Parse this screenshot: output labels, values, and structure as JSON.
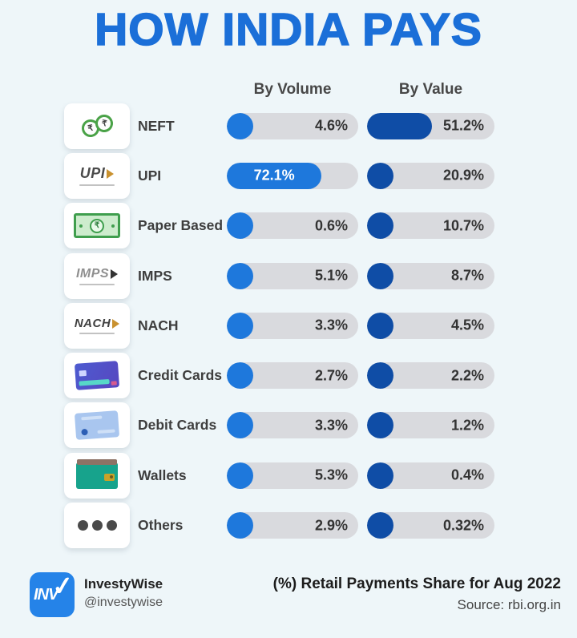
{
  "title": "HOW INDIA PAYS",
  "columns": {
    "volume": "By Volume",
    "value": "By Value"
  },
  "rows": [
    {
      "label": "NEFT",
      "icon": "neft-exchange-icon",
      "vol": {
        "pct": 4.6,
        "display": "4.6%"
      },
      "val": {
        "pct": 51.2,
        "display": "51.2%"
      }
    },
    {
      "label": "UPI",
      "icon": "upi-logo-icon",
      "vol": {
        "pct": 72.1,
        "display": "72.1%",
        "inside": true
      },
      "val": {
        "pct": 20.9,
        "display": "20.9%"
      }
    },
    {
      "label": "Paper Based",
      "icon": "banknote-icon",
      "vol": {
        "pct": 0.6,
        "display": "0.6%"
      },
      "val": {
        "pct": 10.7,
        "display": "10.7%"
      }
    },
    {
      "label": "IMPS",
      "icon": "imps-logo-icon",
      "vol": {
        "pct": 5.1,
        "display": "5.1%"
      },
      "val": {
        "pct": 8.7,
        "display": "8.7%"
      }
    },
    {
      "label": "NACH",
      "icon": "nach-logo-icon",
      "vol": {
        "pct": 3.3,
        "display": "3.3%"
      },
      "val": {
        "pct": 4.5,
        "display": "4.5%"
      }
    },
    {
      "label": "Credit Cards",
      "icon": "credit-card-icon",
      "vol": {
        "pct": 2.7,
        "display": "2.7%"
      },
      "val": {
        "pct": 2.2,
        "display": "2.2%"
      }
    },
    {
      "label": "Debit Cards",
      "icon": "debit-card-icon",
      "vol": {
        "pct": 3.3,
        "display": "3.3%"
      },
      "val": {
        "pct": 1.2,
        "display": "1.2%"
      }
    },
    {
      "label": "Wallets",
      "icon": "wallet-icon",
      "vol": {
        "pct": 5.3,
        "display": "5.3%"
      },
      "val": {
        "pct": 0.4,
        "display": "0.4%"
      }
    },
    {
      "label": "Others",
      "icon": "ellipsis-icon",
      "vol": {
        "pct": 2.9,
        "display": "2.9%"
      },
      "val": {
        "pct": 0.32,
        "display": "0.32%"
      }
    }
  ],
  "icon_glyphs": {
    "rupee": "₹",
    "upi": "UPI",
    "imps": "IMPS",
    "nach": "NACH"
  },
  "footer": {
    "logo_text": "INV",
    "logo_check": "✓",
    "brand": "InvestyWise",
    "handle": "@investywise",
    "caption": "(%) Retail Payments Share for Aug 2022",
    "source": "Source: rbi.org.in"
  },
  "colors": {
    "background": "#eef6f9",
    "title_blue": "#1b6fd8",
    "volume_fill": "#1e78dc",
    "value_fill": "#0f4da6",
    "bar_track": "#d9dade",
    "brand_blue": "#2583e8"
  },
  "chart_data": {
    "type": "bar",
    "categories": [
      "NEFT",
      "UPI",
      "Paper Based",
      "IMPS",
      "NACH",
      "Credit Cards",
      "Debit Cards",
      "Wallets",
      "Others"
    ],
    "series": [
      {
        "name": "By Volume",
        "values": [
          4.6,
          72.1,
          0.6,
          5.1,
          3.3,
          2.7,
          3.3,
          5.3,
          2.9
        ]
      },
      {
        "name": "By Value",
        "values": [
          51.2,
          20.9,
          10.7,
          8.7,
          4.5,
          2.2,
          1.2,
          0.4,
          0.32
        ]
      }
    ],
    "title": "HOW INDIA PAYS",
    "xlabel": "",
    "ylabel": "",
    "unit": "%",
    "xlim": [
      0,
      100
    ],
    "grid": false,
    "legend_position": "column-headers",
    "note": "(%) Retail Payments Share for Aug 2022",
    "source": "rbi.org.in"
  }
}
